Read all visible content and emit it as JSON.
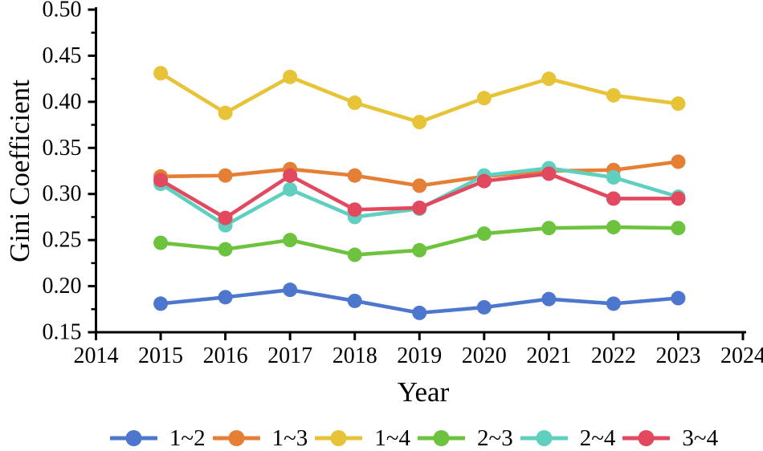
{
  "figure": {
    "background": "#ffffff"
  },
  "chart_data": {
    "type": "line",
    "title": "",
    "xlabel": "Year",
    "ylabel": "Gini Coefficient",
    "grid": false,
    "legend_position": "bottom",
    "xlim": [
      2014,
      2024
    ],
    "ylim": [
      0.15,
      0.5
    ],
    "xticks": [
      2014,
      2015,
      2016,
      2017,
      2018,
      2019,
      2020,
      2021,
      2022,
      2023,
      2024
    ],
    "xtick_labels": [
      "2014",
      "2015",
      "2016",
      "2017",
      "2018",
      "2019",
      "2020",
      "2021",
      "2022",
      "2023",
      "2024"
    ],
    "yticks": [
      0.15,
      0.2,
      0.25,
      0.3,
      0.35,
      0.4,
      0.45,
      0.5
    ],
    "ytick_labels": [
      "0.15",
      "0.20",
      "0.25",
      "0.30",
      "0.35",
      "0.40",
      "0.45",
      "0.50"
    ],
    "y_minor_tick_step": 0.025,
    "x": [
      2015,
      2016,
      2017,
      2018,
      2019,
      2020,
      2021,
      2022,
      2023
    ],
    "series": [
      {
        "name": "1~2",
        "color": "#4d77cc",
        "values": [
          0.181,
          0.188,
          0.196,
          0.184,
          0.171,
          0.177,
          0.186,
          0.181,
          0.187
        ]
      },
      {
        "name": "1~3",
        "color": "#e57f35",
        "values": [
          0.319,
          0.32,
          0.327,
          0.32,
          0.309,
          0.319,
          0.325,
          0.326,
          0.335
        ]
      },
      {
        "name": "1~4",
        "color": "#e6c337",
        "values": [
          0.431,
          0.388,
          0.427,
          0.399,
          0.378,
          0.404,
          0.425,
          0.407,
          0.398
        ]
      },
      {
        "name": "2~3",
        "color": "#6ec33e",
        "values": [
          0.247,
          0.24,
          0.25,
          0.234,
          0.239,
          0.257,
          0.263,
          0.264,
          0.263
        ]
      },
      {
        "name": "2~4",
        "color": "#5fcfbf",
        "values": [
          0.311,
          0.266,
          0.305,
          0.275,
          0.284,
          0.32,
          0.328,
          0.318,
          0.297
        ]
      },
      {
        "name": "3~4",
        "color": "#e2495e",
        "values": [
          0.315,
          0.274,
          0.32,
          0.283,
          0.285,
          0.314,
          0.322,
          0.295,
          0.295
        ]
      }
    ]
  }
}
